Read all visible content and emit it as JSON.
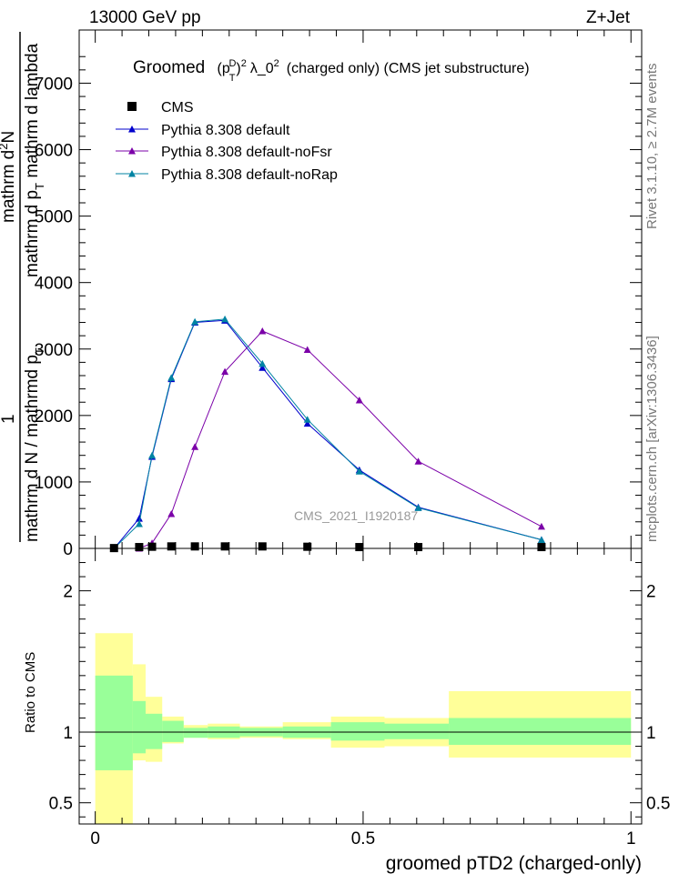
{
  "header": {
    "energy_label": "13000 GeV pp",
    "process_label": "Z+Jet"
  },
  "side_labels": {
    "rivet": "Rivet 3.1.10, ≥ 2.7M events",
    "source": "mcplots.cern.ch [arXiv:1306.3436]"
  },
  "colors": {
    "cms": "#000000",
    "default": "#0000cc",
    "noFsr": "#7b00a8",
    "noRap": "#0083a3",
    "band_stat": "#99ff99",
    "band_total": "#ffff99"
  },
  "chart_data": [
    {
      "type": "line",
      "title": "Groomed  (p_T^D)^2 λ_0^2  (charged only) (CMS jet substructure)",
      "ylabel": "1 / mathrm d N / mathrmd p_T mathrm d^2N / mathrm d p_T mathrm d lambda",
      "ylabel_parts": {
        "one": "1",
        "bottom": "mathrm d N / mathrmd p",
        "bottom_sub": "T",
        "top1": "mathrm d",
        "top1_sup": "2",
        "top1_rest": "N",
        "top2": "mathrm d p",
        "top2_sub": "T",
        "top2_rest": " mathrm d lambda"
      },
      "title_parts": {
        "word": "Groomed",
        "p": "(p",
        "sup": "D",
        "sub": "T",
        "close": ")",
        "exp": "2",
        "lam": "λ_0",
        "lam_exp": "2",
        "rest": "(charged only) (CMS jet substructure)"
      },
      "watermark": "CMS_2021_I1920187",
      "xlim": [
        -0.03,
        1.02
      ],
      "ylim": [
        0,
        7800
      ],
      "y_tick_labels": [
        {
          "value": 0,
          "label": "0"
        },
        {
          "value": 1000,
          "label": "1000"
        },
        {
          "value": 2000,
          "label": "2000"
        },
        {
          "value": 3000,
          "label": "3000"
        },
        {
          "value": 4000,
          "label": "4000"
        },
        {
          "value": 5000,
          "label": "5000"
        },
        {
          "value": 6000,
          "label": "6000"
        },
        {
          "value": 7000,
          "label": "7000"
        }
      ],
      "legend_position": "top-left",
      "grid": false,
      "x": [
        0.035,
        0.082,
        0.106,
        0.142,
        0.186,
        0.242,
        0.312,
        0.396,
        0.493,
        0.603,
        0.833
      ],
      "series": [
        {
          "name": "CMS",
          "values": [
            5,
            20,
            25,
            30,
            30,
            30,
            30,
            25,
            20,
            20,
            20
          ]
        },
        {
          "name": "Pythia 8.308 default",
          "values": [
            0,
            450,
            1380,
            2550,
            3400,
            3430,
            2720,
            1880,
            1180,
            620,
            130
          ]
        },
        {
          "name": "Pythia 8.308 default-noFsr",
          "values": [
            0,
            0,
            80,
            520,
            1530,
            2660,
            3270,
            2990,
            2230,
            1310,
            330
          ]
        },
        {
          "name": "Pythia 8.308 default-noRap",
          "values": [
            0,
            370,
            1400,
            2570,
            3410,
            3450,
            2780,
            1940,
            1160,
            610,
            130
          ]
        }
      ]
    },
    {
      "type": "line",
      "ylabel": "Ratio to CMS",
      "xlabel": "groomed pTD2 (charged-only)",
      "xlim": [
        -0.03,
        1.02
      ],
      "ylim": [
        0.35,
        2.3
      ],
      "x_tick_labels": [
        {
          "value": 0,
          "label": "0"
        },
        {
          "value": 0.5,
          "label": "0.5"
        },
        {
          "value": 1,
          "label": "1"
        }
      ],
      "y_tick_labels": [
        {
          "value": 0.5,
          "label": "0.5"
        },
        {
          "value": 1,
          "label": "1"
        },
        {
          "value": 2,
          "label": "2"
        }
      ],
      "bin_edges": [
        0,
        0.07,
        0.094,
        0.125,
        0.165,
        0.21,
        0.27,
        0.35,
        0.44,
        0.54,
        0.66,
        1.0
      ],
      "stat_band": [
        [
          0.73,
          1.4
        ],
        [
          0.85,
          1.22
        ],
        [
          0.88,
          1.13
        ],
        [
          0.93,
          1.08
        ],
        [
          0.96,
          1.03
        ],
        [
          0.96,
          1.04
        ],
        [
          0.97,
          1.03
        ],
        [
          0.96,
          1.04
        ],
        [
          0.94,
          1.07
        ],
        [
          0.95,
          1.06
        ],
        [
          0.91,
          1.1
        ]
      ],
      "total_band": [
        [
          0.35,
          1.7
        ],
        [
          0.8,
          1.48
        ],
        [
          0.79,
          1.25
        ],
        [
          0.92,
          1.11
        ],
        [
          0.96,
          1.05
        ],
        [
          0.95,
          1.06
        ],
        [
          0.96,
          1.04
        ],
        [
          0.95,
          1.07
        ],
        [
          0.89,
          1.11
        ],
        [
          0.9,
          1.1
        ],
        [
          0.82,
          1.29
        ]
      ],
      "reference_line": 1
    }
  ]
}
